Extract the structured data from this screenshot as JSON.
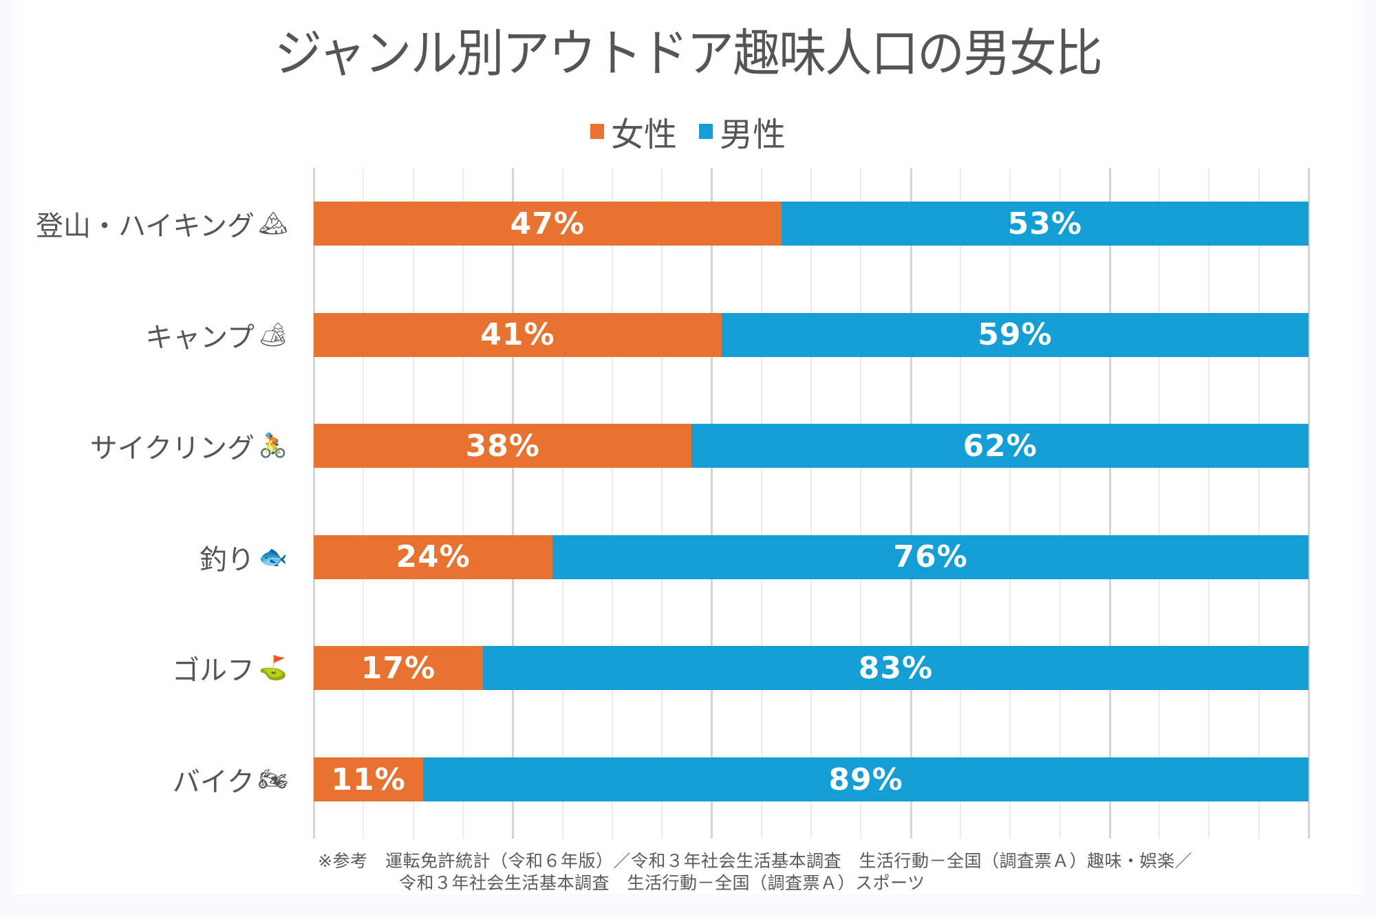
{
  "colors": {
    "female": "#e8722f",
    "male": "#139fd6",
    "text": "#555555",
    "page_bg": "#f7f9fc"
  },
  "chart_data": {
    "type": "bar",
    "orientation": "horizontal",
    "stacked": true,
    "percent_stacked": true,
    "title": "ジャンル別アウトドア趣味人口の男女比",
    "xlabel": "",
    "ylabel": "",
    "xlim": [
      0,
      100
    ],
    "grid": true,
    "legend_position": "top-center",
    "legend": [
      "女性",
      "男性"
    ],
    "categories": [
      {
        "label": "登山・ハイキング",
        "icon": "mountain-icon",
        "glyph": "🏔"
      },
      {
        "label": "キャンプ",
        "icon": "tent-icon",
        "glyph": "🏕"
      },
      {
        "label": "サイクリング",
        "icon": "cyclist-icon",
        "glyph": "🚴"
      },
      {
        "label": "釣り",
        "icon": "fish-icon",
        "glyph": "🐟"
      },
      {
        "label": "ゴルフ",
        "icon": "golf-flag-icon",
        "glyph": "⛳"
      },
      {
        "label": "バイク",
        "icon": "motorcycle-icon",
        "glyph": "🏍"
      }
    ],
    "series": [
      {
        "name": "女性",
        "color": "#e8722f",
        "values": [
          47,
          41,
          38,
          24,
          17,
          11
        ],
        "labels": [
          "47%",
          "41%",
          "38%",
          "24%",
          "17%",
          "11%"
        ]
      },
      {
        "name": "男性",
        "color": "#139fd6",
        "values": [
          53,
          59,
          62,
          76,
          83,
          89
        ],
        "labels": [
          "53%",
          "59%",
          "62%",
          "76%",
          "83%",
          "89%"
        ]
      }
    ],
    "footnote": [
      "※参考　運転免許統計（令和６年版）／令和３年社会生活基本調査　生活行動－全国（調査票Ａ）趣味・娯楽／",
      "令和３年社会生活基本調査　生活行動－全国（調査票Ａ）スポーツ"
    ]
  }
}
